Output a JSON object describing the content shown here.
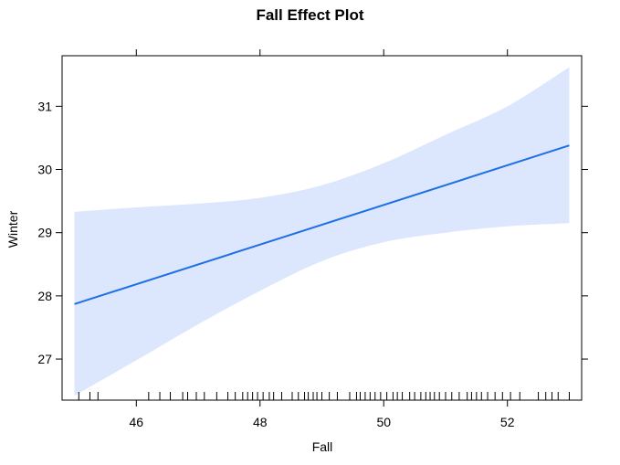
{
  "chart_data": {
    "type": "line",
    "title": "Fall Effect Plot",
    "xlabel": "Fall",
    "ylabel": "Winter",
    "xlim": [
      44.8,
      53.2
    ],
    "ylim": [
      26.35,
      31.8
    ],
    "xticks": [
      46,
      48,
      50,
      52
    ],
    "yticks": [
      27,
      28,
      29,
      30,
      31
    ],
    "grid": false,
    "series": [
      {
        "x": [
          45,
          53
        ],
        "y": [
          27.87,
          30.38
        ]
      }
    ],
    "confidence_band": {
      "x": [
        45,
        46,
        47,
        48,
        49,
        50,
        51,
        52,
        53
      ],
      "lower": [
        26.42,
        26.98,
        27.55,
        28.08,
        28.55,
        28.85,
        29.0,
        29.1,
        29.15
      ],
      "upper": [
        29.33,
        29.4,
        29.46,
        29.55,
        29.75,
        30.1,
        30.55,
        31.0,
        31.62
      ]
    },
    "rug": [
      45.07,
      45.25,
      45.38,
      46.2,
      46.38,
      46.55,
      46.75,
      46.83,
      46.97,
      47.1,
      47.3,
      47.48,
      47.6,
      47.72,
      47.8,
      47.88,
      47.96,
      48.05,
      48.15,
      48.22,
      48.35,
      48.52,
      48.62,
      48.72,
      48.78,
      48.86,
      48.92,
      49.0,
      49.12,
      49.25,
      49.45,
      49.56,
      49.62,
      49.7,
      49.78,
      49.86,
      49.95,
      50.05,
      50.15,
      50.22,
      50.3,
      50.42,
      50.5,
      50.6,
      50.68,
      50.75,
      50.82,
      50.9,
      51.0,
      51.1,
      51.22,
      51.35,
      51.42,
      51.5,
      51.58,
      51.68,
      51.8,
      51.92,
      52.05,
      52.2,
      52.5,
      52.62,
      52.72,
      52.82,
      53.0
    ],
    "colors": {
      "line": "#1f6fe5",
      "band": "#dce7fd",
      "frame": "#000000"
    }
  }
}
